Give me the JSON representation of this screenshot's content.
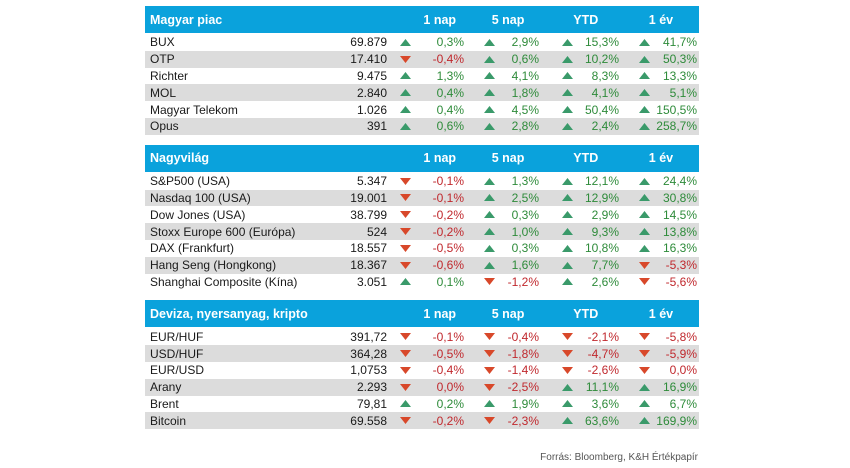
{
  "columns": [
    "1 nap",
    "5 nap",
    "YTD",
    "1 év"
  ],
  "colors": {
    "header": "#0aa2dc",
    "up": "#2e8b3a",
    "down": "#c0282d",
    "shade": "#dcdcdc"
  },
  "sections": [
    {
      "title": "Magyar piac",
      "rows": [
        {
          "name": "BUX",
          "value": "69.879",
          "changes": [
            {
              "v": "0,3%",
              "d": "up"
            },
            {
              "v": "2,9%",
              "d": "up"
            },
            {
              "v": "15,3%",
              "d": "up"
            },
            {
              "v": "41,7%",
              "d": "up"
            }
          ]
        },
        {
          "name": "OTP",
          "value": "17.410",
          "changes": [
            {
              "v": "-0,4%",
              "d": "down"
            },
            {
              "v": "0,6%",
              "d": "up"
            },
            {
              "v": "10,2%",
              "d": "up"
            },
            {
              "v": "50,3%",
              "d": "up"
            }
          ]
        },
        {
          "name": "Richter",
          "value": "9.475",
          "changes": [
            {
              "v": "1,3%",
              "d": "up"
            },
            {
              "v": "4,1%",
              "d": "up"
            },
            {
              "v": "8,3%",
              "d": "up"
            },
            {
              "v": "13,3%",
              "d": "up"
            }
          ]
        },
        {
          "name": "MOL",
          "value": "2.840",
          "changes": [
            {
              "v": "0,4%",
              "d": "up"
            },
            {
              "v": "1,8%",
              "d": "up"
            },
            {
              "v": "4,1%",
              "d": "up"
            },
            {
              "v": "5,1%",
              "d": "up"
            }
          ]
        },
        {
          "name": "Magyar Telekom",
          "value": "1.026",
          "changes": [
            {
              "v": "0,4%",
              "d": "up"
            },
            {
              "v": "4,5%",
              "d": "up"
            },
            {
              "v": "50,4%",
              "d": "up"
            },
            {
              "v": "150,5%",
              "d": "up"
            }
          ]
        },
        {
          "name": "Opus",
          "value": "391",
          "changes": [
            {
              "v": "0,6%",
              "d": "up"
            },
            {
              "v": "2,8%",
              "d": "up"
            },
            {
              "v": "2,4%",
              "d": "up"
            },
            {
              "v": "258,7%",
              "d": "up"
            }
          ]
        }
      ]
    },
    {
      "title": "Nagyvilág",
      "rows": [
        {
          "name": "S&P500 (USA)",
          "value": "5.347",
          "changes": [
            {
              "v": "-0,1%",
              "d": "down"
            },
            {
              "v": "1,3%",
              "d": "up"
            },
            {
              "v": "12,1%",
              "d": "up"
            },
            {
              "v": "24,4%",
              "d": "up"
            }
          ]
        },
        {
          "name": "Nasdaq 100 (USA)",
          "value": "19.001",
          "changes": [
            {
              "v": "-0,1%",
              "d": "down"
            },
            {
              "v": "2,5%",
              "d": "up"
            },
            {
              "v": "12,9%",
              "d": "up"
            },
            {
              "v": "30,8%",
              "d": "up"
            }
          ]
        },
        {
          "name": "Dow Jones (USA)",
          "value": "38.799",
          "changes": [
            {
              "v": "-0,2%",
              "d": "down"
            },
            {
              "v": "0,3%",
              "d": "up"
            },
            {
              "v": "2,9%",
              "d": "up"
            },
            {
              "v": "14,5%",
              "d": "up"
            }
          ]
        },
        {
          "name": "Stoxx Europe 600 (Európa)",
          "value": "524",
          "changes": [
            {
              "v": "-0,2%",
              "d": "down"
            },
            {
              "v": "1,0%",
              "d": "up"
            },
            {
              "v": "9,3%",
              "d": "up"
            },
            {
              "v": "13,8%",
              "d": "up"
            }
          ]
        },
        {
          "name": "DAX (Frankfurt)",
          "value": "18.557",
          "changes": [
            {
              "v": "-0,5%",
              "d": "down"
            },
            {
              "v": "0,3%",
              "d": "up"
            },
            {
              "v": "10,8%",
              "d": "up"
            },
            {
              "v": "16,3%",
              "d": "up"
            }
          ]
        },
        {
          "name": "Hang Seng (Hongkong)",
          "value": "18.367",
          "changes": [
            {
              "v": "-0,6%",
              "d": "down"
            },
            {
              "v": "1,6%",
              "d": "up"
            },
            {
              "v": "7,7%",
              "d": "up"
            },
            {
              "v": "-5,3%",
              "d": "down"
            }
          ]
        },
        {
          "name": "Shanghai Composite (Kína)",
          "value": "3.051",
          "changes": [
            {
              "v": "0,1%",
              "d": "up"
            },
            {
              "v": "-1,2%",
              "d": "down"
            },
            {
              "v": "2,6%",
              "d": "up"
            },
            {
              "v": "-5,6%",
              "d": "down"
            }
          ]
        }
      ]
    },
    {
      "title": "Deviza, nyersanyag, kripto",
      "rows": [
        {
          "name": "EUR/HUF",
          "value": "391,72",
          "changes": [
            {
              "v": "-0,1%",
              "d": "down"
            },
            {
              "v": "-0,4%",
              "d": "down"
            },
            {
              "v": "-2,1%",
              "d": "down"
            },
            {
              "v": "-5,8%",
              "d": "down"
            }
          ]
        },
        {
          "name": "USD/HUF",
          "value": "364,28",
          "changes": [
            {
              "v": "-0,5%",
              "d": "down"
            },
            {
              "v": "-1,8%",
              "d": "down"
            },
            {
              "v": "-4,7%",
              "d": "down"
            },
            {
              "v": "-5,9%",
              "d": "down"
            }
          ]
        },
        {
          "name": "EUR/USD",
          "value": "1,0753",
          "changes": [
            {
              "v": "-0,4%",
              "d": "down"
            },
            {
              "v": "-1,4%",
              "d": "down"
            },
            {
              "v": "-2,6%",
              "d": "down"
            },
            {
              "v": "0,0%",
              "d": "down"
            }
          ]
        },
        {
          "name": "Arany",
          "value": "2.293",
          "changes": [
            {
              "v": "0,0%",
              "d": "down"
            },
            {
              "v": "-2,5%",
              "d": "down"
            },
            {
              "v": "11,1%",
              "d": "up"
            },
            {
              "v": "16,9%",
              "d": "up"
            }
          ]
        },
        {
          "name": "Brent",
          "value": "79,81",
          "changes": [
            {
              "v": "0,2%",
              "d": "up"
            },
            {
              "v": "1,9%",
              "d": "up"
            },
            {
              "v": "3,6%",
              "d": "up"
            },
            {
              "v": "6,7%",
              "d": "up"
            }
          ]
        },
        {
          "name": "Bitcoin",
          "value": "69.558",
          "changes": [
            {
              "v": "-0,2%",
              "d": "down"
            },
            {
              "v": "-2,3%",
              "d": "down"
            },
            {
              "v": "63,6%",
              "d": "up"
            },
            {
              "v": "169,9%",
              "d": "up"
            }
          ]
        }
      ]
    }
  ],
  "source": "Forrás: Bloomberg, K&H Értékpapír"
}
